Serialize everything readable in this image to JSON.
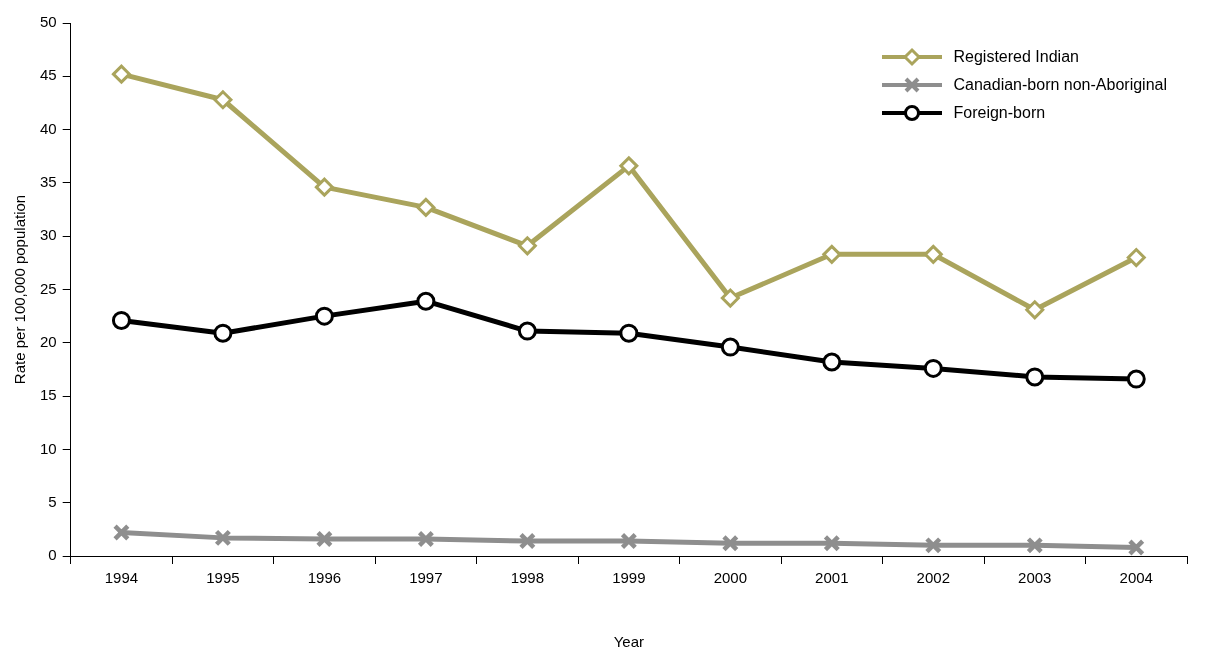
{
  "chart_data": {
    "type": "line",
    "xlabel": "Year",
    "ylabel": "Rate per 100,000 population",
    "categories": [
      "1994",
      "1995",
      "1996",
      "1997",
      "1998",
      "1999",
      "2000",
      "2001",
      "2002",
      "2003",
      "2004"
    ],
    "series": [
      {
        "name": "Registered Indian",
        "color": "#aaa45c",
        "marker": "diamond",
        "values": [
          45.2,
          42.8,
          34.6,
          32.7,
          29.1,
          36.6,
          24.2,
          28.3,
          28.3,
          23.1,
          28.0
        ]
      },
      {
        "name": "Canadian-born non-Aboriginal",
        "color": "#8e8e8e",
        "marker": "cross",
        "values": [
          2.2,
          1.7,
          1.6,
          1.6,
          1.4,
          1.4,
          1.2,
          1.2,
          1.0,
          1.0,
          0.8
        ]
      },
      {
        "name": "Foreign-born",
        "color": "#000000",
        "marker": "circle",
        "values": [
          22.1,
          20.9,
          22.5,
          23.9,
          21.1,
          20.9,
          19.6,
          18.2,
          17.6,
          16.8,
          16.6
        ]
      }
    ],
    "ylim": [
      0,
      50
    ],
    "yticks": [
      0,
      5,
      10,
      15,
      20,
      25,
      30,
      35,
      40,
      45,
      50
    ],
    "grid": false,
    "legend": "top right",
    "line_style": "solid"
  }
}
